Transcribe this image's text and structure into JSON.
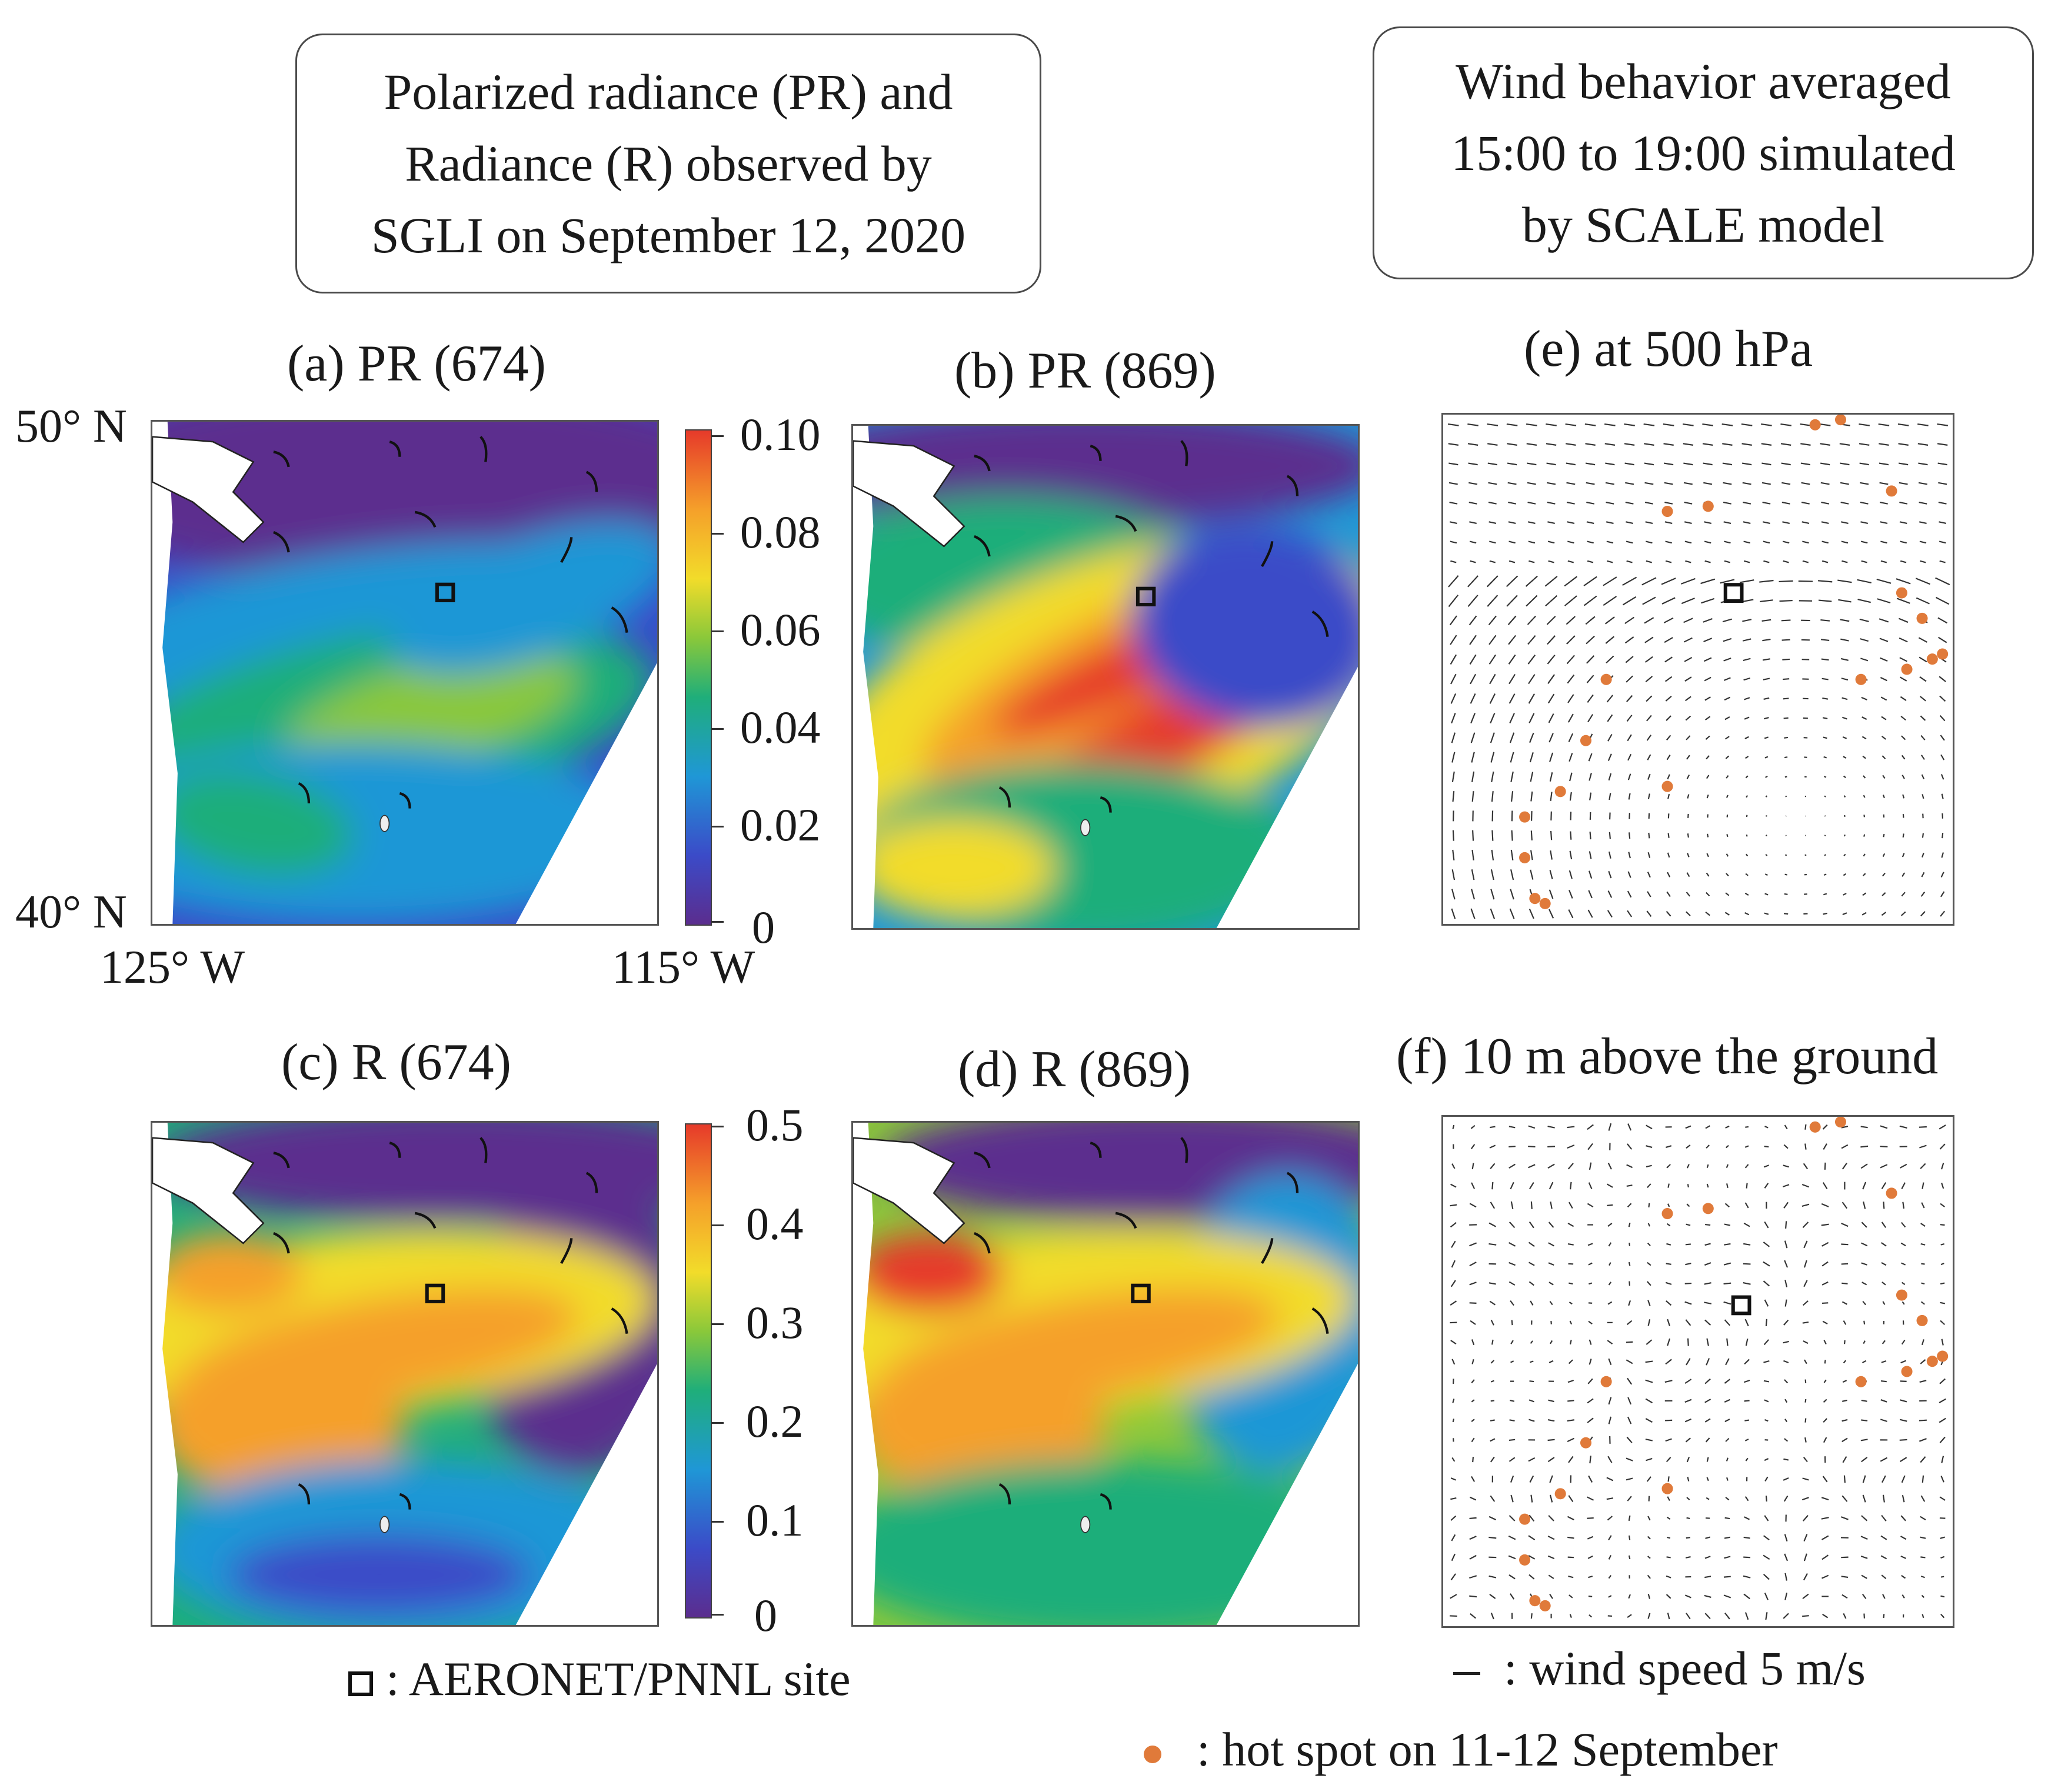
{
  "header": {
    "left_box": [
      "Polarized radiance (PR) and",
      "Radiance (R) observed by",
      "SGLI  on September  12, 2020"
    ],
    "right_box": [
      "Wind  behavior averaged",
      "15:00 to 19:00 simulated",
      "by  SCALE  model"
    ]
  },
  "panels": {
    "a": "(a) PR (674)",
    "b": "(b)  PR (869)",
    "c": "(c) R (674)",
    "d": "(d)  R (869)",
    "e": "(e) at 500 hPa",
    "f": "(f) 10 m above the ground"
  },
  "axes": {
    "lat_top": "50° N",
    "lat_bottom": "40° N",
    "lon_left": "125° W",
    "lon_right": "115° W"
  },
  "colorbar_pr": {
    "ticks": [
      "0.10",
      "0.08",
      "0.06",
      "0.04",
      "0.02",
      "0"
    ]
  },
  "colorbar_r": {
    "ticks": [
      "0.5",
      "0.4",
      "0.3",
      "0.2",
      "0.1",
      "0"
    ]
  },
  "legend": {
    "site": ": AERONET/PNNL  site",
    "wind": ": wind  speed  5 m/s",
    "hotspot": ": hot spot on 11-12 September"
  },
  "colors": {
    "hotspot": "#e07a3a",
    "colormap": [
      "#5b2d8e",
      "#3b4bc8",
      "#1f97d6",
      "#1fae7a",
      "#8ac83a",
      "#f2dc2a",
      "#f5a02a",
      "#e63a2a"
    ]
  }
}
